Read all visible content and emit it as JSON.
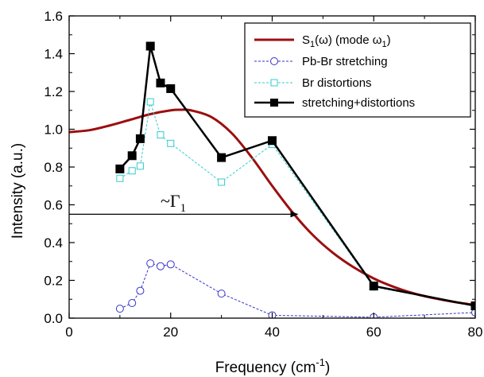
{
  "chart_data": {
    "type": "line",
    "xlabel": "Frequency (cm",
    "xlabel_sup": "-1",
    "xlabel_end": ")",
    "ylabel": "Intensity (a.u.)",
    "xlim": [
      0,
      80
    ],
    "ylim": [
      0,
      1.6
    ],
    "xticks": [
      0,
      20,
      40,
      60,
      80
    ],
    "yticks": [
      0.0,
      0.2,
      0.4,
      0.6,
      0.8,
      1.0,
      1.2,
      1.4,
      1.6
    ],
    "grid": false,
    "legend_position": "top-right",
    "series": [
      {
        "name": "S1(ω) (mode ω1)",
        "legend_parts": [
          "S",
          "1",
          "(",
          "ω",
          ") (mode ",
          "ω",
          "1",
          ")"
        ],
        "style": "curve",
        "color": "#9b0f0f",
        "x": [
          0,
          4,
          8,
          12,
          16,
          20,
          22,
          24,
          28,
          32,
          36,
          40,
          44,
          48,
          52,
          56,
          60,
          64,
          68,
          72,
          76,
          80
        ],
        "y": [
          0.985,
          0.995,
          1.02,
          1.05,
          1.08,
          1.1,
          1.103,
          1.1,
          1.065,
          0.98,
          0.85,
          0.7,
          0.56,
          0.44,
          0.345,
          0.27,
          0.21,
          0.165,
          0.13,
          0.105,
          0.085,
          0.07
        ]
      },
      {
        "name": "Pb-Br stretching",
        "style": "dashed-open-circle",
        "color": "#3333cc",
        "x": [
          10,
          12.4,
          14,
          16,
          18,
          20,
          30,
          40,
          60,
          80
        ],
        "y": [
          0.05,
          0.08,
          0.145,
          0.29,
          0.275,
          0.285,
          0.13,
          0.015,
          0.005,
          0.03
        ]
      },
      {
        "name": "Br distortions",
        "style": "dashed-open-square",
        "color": "#33cccc",
        "x": [
          10,
          12.4,
          14,
          16,
          18,
          20,
          30,
          40,
          60,
          80
        ],
        "y": [
          0.74,
          0.78,
          0.805,
          1.145,
          0.97,
          0.925,
          0.72,
          0.92,
          0.165,
          0.065
        ]
      },
      {
        "name": "stretching+distortions",
        "style": "solid-filled-square",
        "color": "#000000",
        "x": [
          10,
          12.4,
          14,
          16,
          18,
          20,
          30,
          40,
          60,
          80
        ],
        "y": [
          0.79,
          0.86,
          0.95,
          1.44,
          1.245,
          1.215,
          0.85,
          0.94,
          0.17,
          0.065
        ]
      }
    ],
    "annotations": [
      {
        "type": "arrow",
        "x_start": 0,
        "x_end": 45,
        "y": 0.55
      },
      {
        "type": "text",
        "text": "~Γ",
        "subscript": "1",
        "x": 18,
        "y": 0.59
      }
    ]
  }
}
